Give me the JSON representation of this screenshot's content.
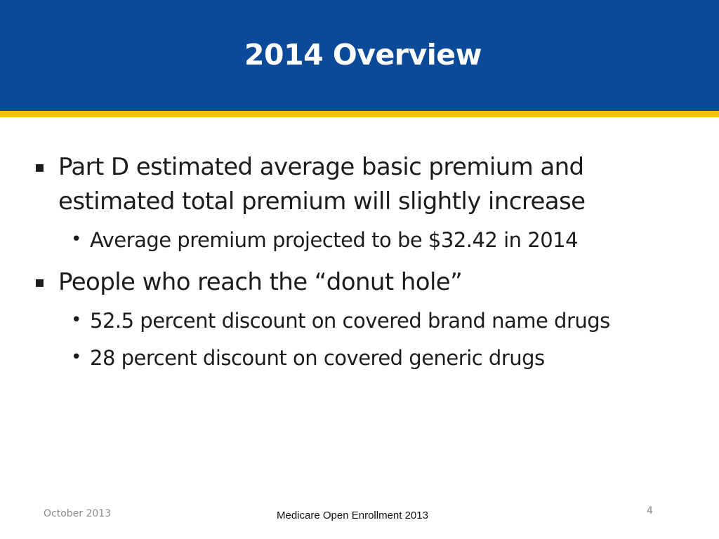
{
  "slide": {
    "title": "2014 Overview",
    "bullets": [
      {
        "text": "Part D estimated average basic premium and estimated total premium will slightly increase",
        "sub": [
          "Average premium projected to be $32.42 in 2014"
        ]
      },
      {
        "text": "People who reach the “donut hole”",
        "sub": [
          "52.5 percent discount on covered brand name drugs",
          "28 percent discount on covered generic drugs"
        ]
      }
    ],
    "level1_marker": "▪",
    "level2_marker": "•"
  },
  "footer": {
    "date": "October 2013",
    "center": "Medicare Open Enrollment 2013",
    "page_number": "4"
  },
  "colors": {
    "title_band": "#0a4a99",
    "accent_stripe": "#f5c400",
    "title_text": "#ffffff",
    "body_text": "#1c1c1c"
  }
}
